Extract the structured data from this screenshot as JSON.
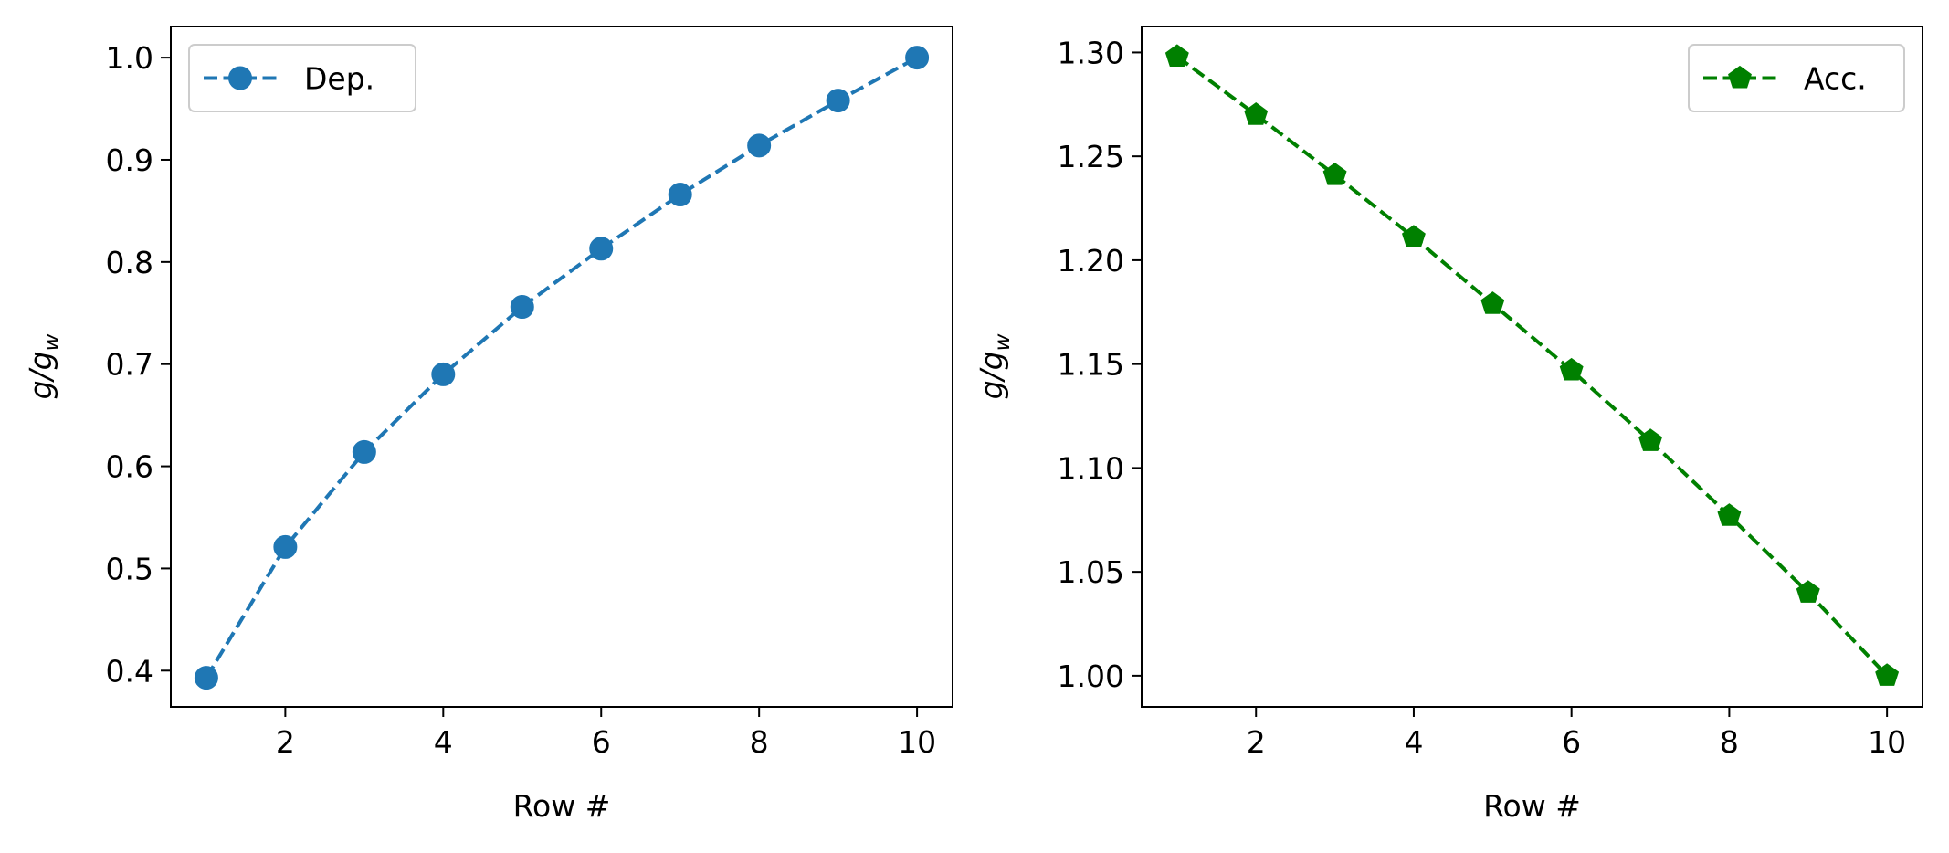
{
  "chart_data": [
    {
      "type": "line",
      "xlabel": "Row #",
      "ylabel_main": "g/g",
      "ylabel_sub": "w",
      "x": [
        1,
        2,
        3,
        4,
        5,
        6,
        7,
        8,
        9,
        10
      ],
      "xlim": [
        0.55,
        10.45
      ],
      "ylim": [
        0.3645,
        1.0305
      ],
      "xticks": [
        2,
        4,
        6,
        8,
        10
      ],
      "yticks": [
        0.4,
        0.5,
        0.6,
        0.7,
        0.8,
        0.9,
        1.0
      ],
      "ytick_decimals": 1,
      "legend_position": "upper-left",
      "series": [
        {
          "name": "Dep.",
          "color": "#1f77b4",
          "marker": "circle",
          "line_style": "dashed",
          "values": [
            0.393,
            0.521,
            0.614,
            0.69,
            0.756,
            0.813,
            0.866,
            0.914,
            0.958,
            1.0
          ]
        }
      ]
    },
    {
      "type": "line",
      "xlabel": "Row #",
      "ylabel_main": "g/g",
      "ylabel_sub": "w",
      "x": [
        1,
        2,
        3,
        4,
        5,
        6,
        7,
        8,
        9,
        10
      ],
      "xlim": [
        0.55,
        10.45
      ],
      "ylim": [
        0.985,
        1.3125
      ],
      "xticks": [
        2,
        4,
        6,
        8,
        10
      ],
      "yticks": [
        1.0,
        1.05,
        1.1,
        1.15,
        1.2,
        1.25,
        1.3
      ],
      "ytick_decimals": 2,
      "legend_position": "upper-right",
      "series": [
        {
          "name": "Acc.",
          "color": "#008000",
          "marker": "pentagon",
          "line_style": "dashed",
          "values": [
            1.298,
            1.27,
            1.241,
            1.211,
            1.179,
            1.147,
            1.113,
            1.077,
            1.04,
            1.0
          ]
        }
      ]
    }
  ]
}
